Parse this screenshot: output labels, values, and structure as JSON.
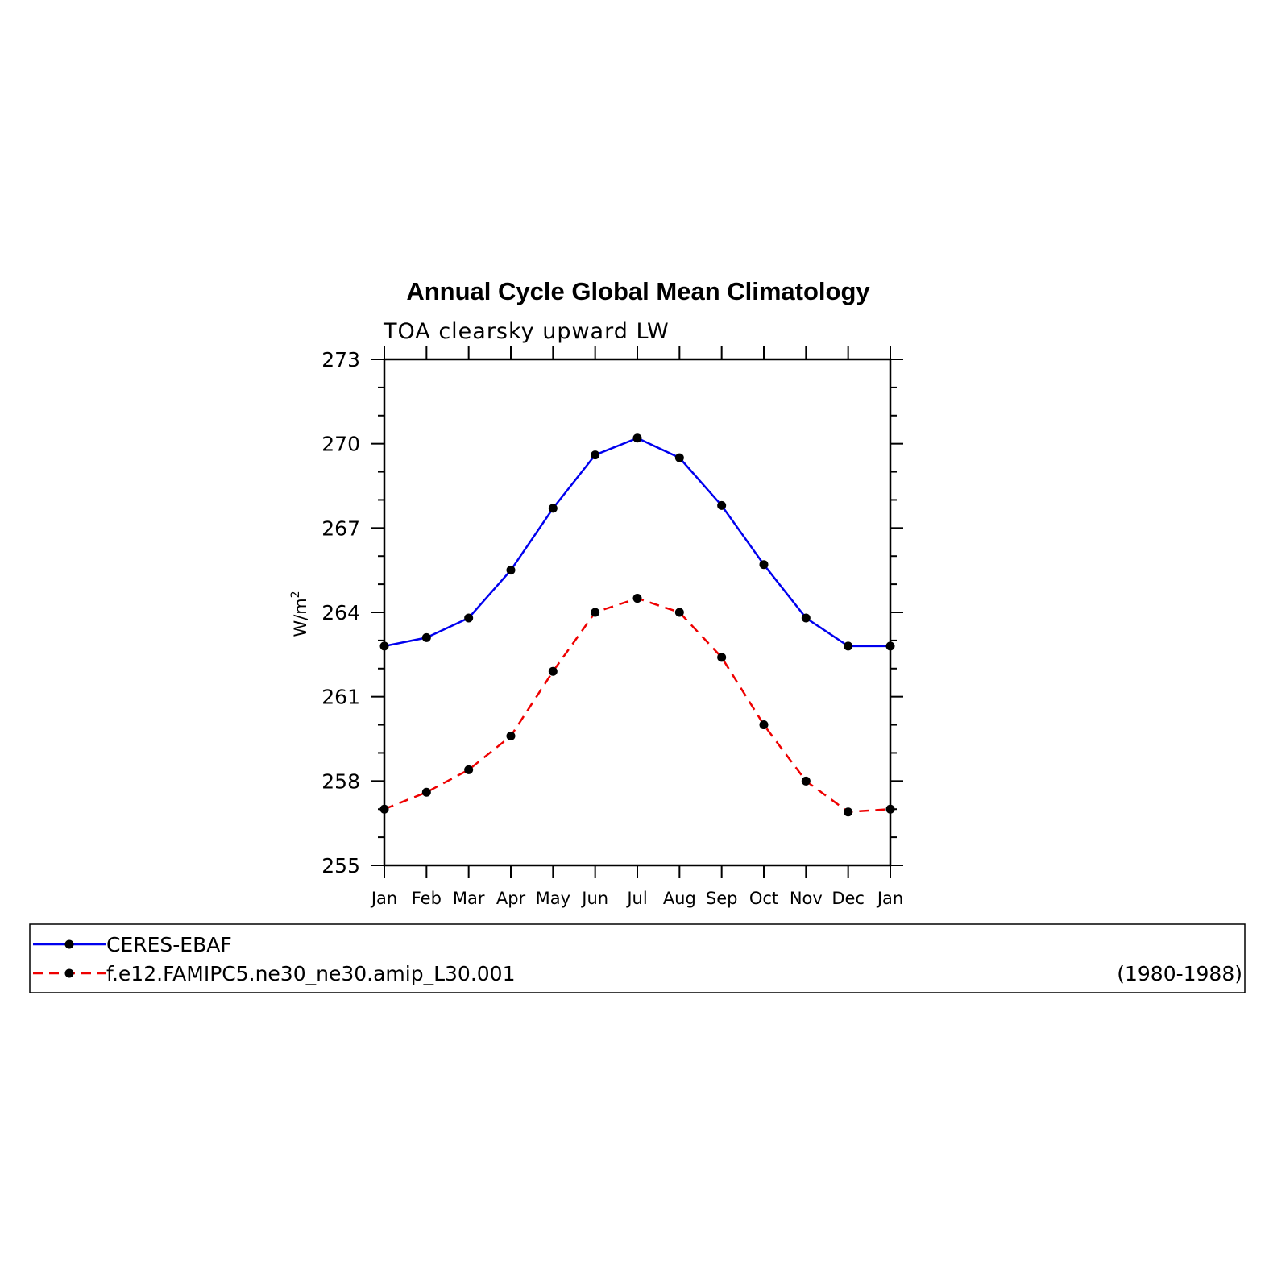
{
  "chart_data": {
    "type": "line",
    "title": "Annual Cycle Global Mean Climatology",
    "subtitle": "TOA clearsky upward LW",
    "ylabel": "W/m",
    "ylabel_sup": "2",
    "categories": [
      "Jan",
      "Feb",
      "Mar",
      "Apr",
      "May",
      "Jun",
      "Jul",
      "Aug",
      "Sep",
      "Oct",
      "Nov",
      "Dec",
      "Jan"
    ],
    "ylim": [
      255,
      273
    ],
    "yticks": [
      "255",
      "258",
      "261",
      "264",
      "267",
      "270",
      "273"
    ],
    "series": [
      {
        "name": "CERES-EBAF",
        "color": "#0000ee",
        "dash": "solid",
        "values": [
          262.8,
          263.1,
          263.8,
          265.5,
          267.7,
          269.6,
          270.2,
          269.5,
          267.8,
          265.7,
          263.8,
          262.8,
          262.8
        ]
      },
      {
        "name": "f.e12.FAMIPC5.ne30_ne30.amip_L30.001",
        "color": "#ee0000",
        "dash": "dashed",
        "values": [
          257.0,
          257.6,
          258.4,
          259.6,
          261.9,
          264.0,
          264.5,
          264.0,
          262.4,
          260.0,
          258.0,
          256.9,
          257.0
        ]
      }
    ],
    "legend_note": "(1980-1988)",
    "marker_color": "#000000",
    "legend_placement": "bottom"
  }
}
